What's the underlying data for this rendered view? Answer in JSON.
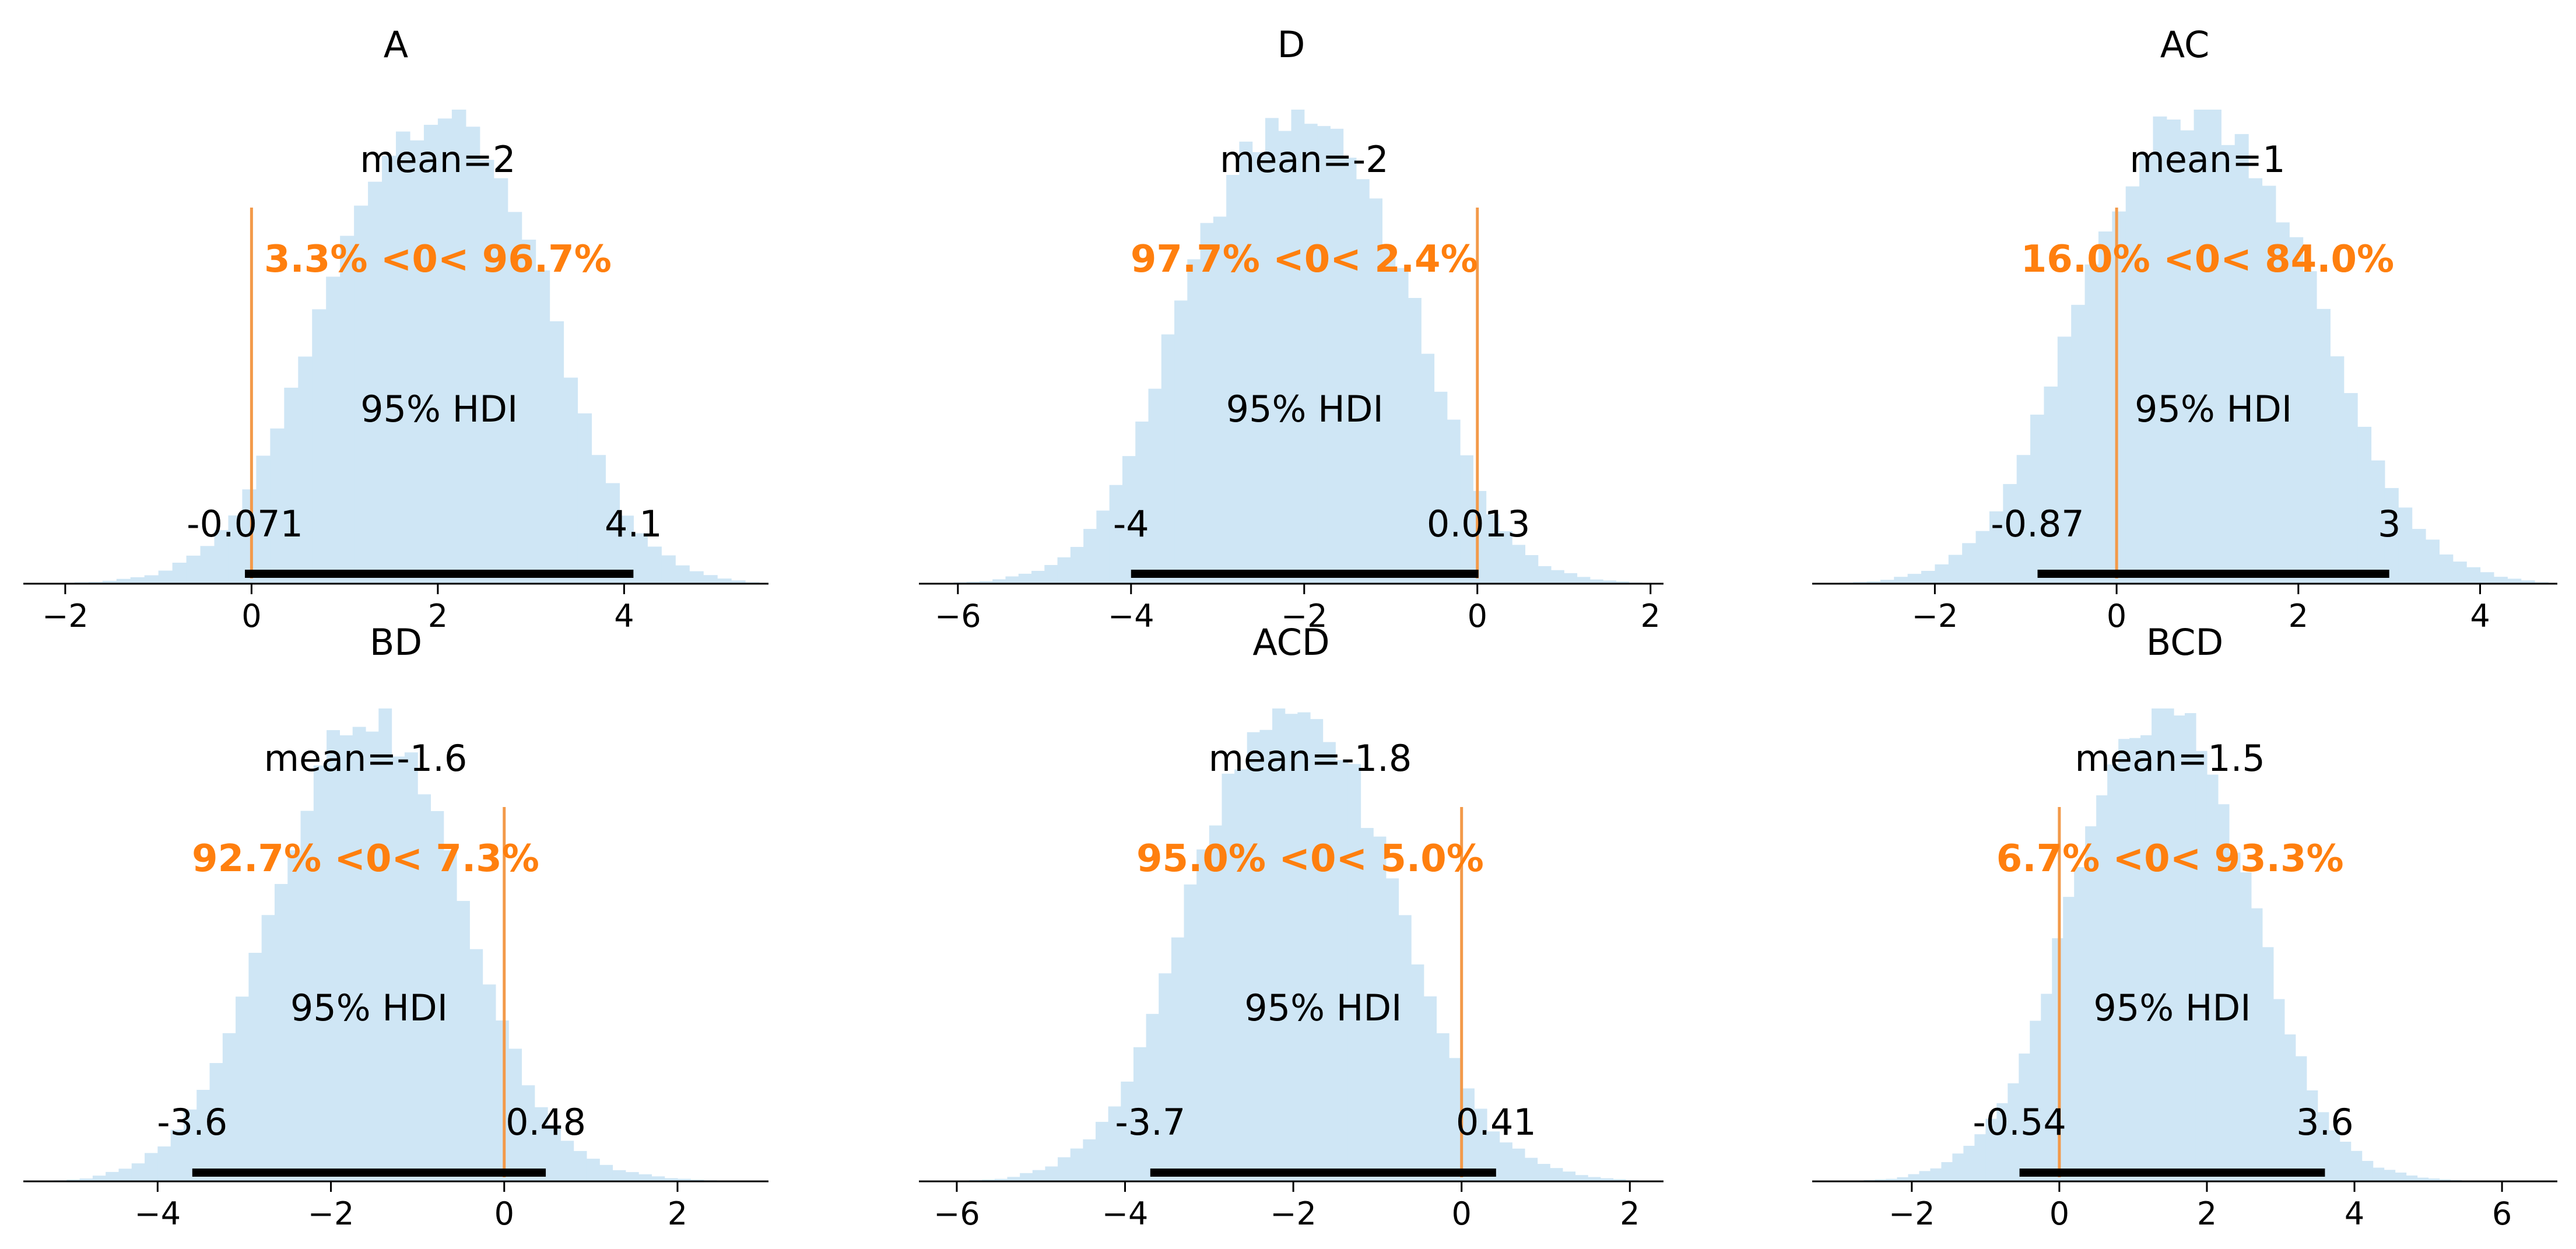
{
  "figure": {
    "type": "posterior-plot-grid",
    "rows": 2,
    "cols": 3
  },
  "colors": {
    "hist": "#cfe6f5",
    "ref": "#ff7f0e",
    "ref_line": "#f39a4a",
    "hdi_bar": "#000000",
    "axis": "#000000",
    "text": "#000000"
  },
  "chart_data": [
    {
      "type": "bar",
      "title": "A",
      "mean_label": "mean=2",
      "mean": 2,
      "ref_label": "3.3% <0< 96.7%",
      "ref_value": 0,
      "pct_below": 3.3,
      "pct_above": 96.7,
      "hdi_label": "95% HDI",
      "hdi_low": -0.071,
      "hdi_high": 4.1,
      "hdi_low_label": "-0.071",
      "hdi_high_label": "4.1",
      "xlim": [
        -2.45,
        5.55
      ],
      "xticks": [
        -2,
        0,
        2,
        4
      ],
      "xtick_labels": [
        "−2",
        "0",
        "2",
        "4"
      ],
      "bin_width": 0.15,
      "bins_x": [
        -2.2,
        5.4
      ],
      "density_anchors": [
        [
          -2.4,
          0
        ],
        [
          -1.6,
          0.004
        ],
        [
          -1.0,
          0.02
        ],
        [
          -0.6,
          0.06
        ],
        [
          -0.2,
          0.13
        ],
        [
          0.2,
          0.29
        ],
        [
          0.6,
          0.5
        ],
        [
          1.0,
          0.71
        ],
        [
          1.3,
          0.87
        ],
        [
          1.6,
          0.95
        ],
        [
          1.9,
          1.0
        ],
        [
          2.2,
          0.98
        ],
        [
          2.5,
          0.92
        ],
        [
          2.8,
          0.82
        ],
        [
          3.1,
          0.65
        ],
        [
          3.4,
          0.45
        ],
        [
          3.7,
          0.28
        ],
        [
          4.0,
          0.15
        ],
        [
          4.3,
          0.08
        ],
        [
          4.7,
          0.03
        ],
        [
          5.1,
          0.01
        ],
        [
          5.5,
          0
        ]
      ]
    },
    {
      "type": "bar",
      "title": "D",
      "mean_label": "mean=-2",
      "mean": -2,
      "ref_label": "97.7% <0< 2.4%",
      "ref_value": 0,
      "pct_below": 97.7,
      "pct_above": 2.4,
      "hdi_label": "95% HDI",
      "hdi_low": -4,
      "hdi_high": 0.013,
      "hdi_low_label": "-4",
      "hdi_high_label": "0.013",
      "xlim": [
        -6.45,
        2.15
      ],
      "xticks": [
        -6,
        -4,
        -2,
        0,
        2
      ],
      "xtick_labels": [
        "−6",
        "−4",
        "−2",
        "0",
        "2"
      ],
      "bin_width": 0.15,
      "bins_x": [
        -6.2,
        2.0
      ],
      "density_anchors": [
        [
          -6.3,
          0
        ],
        [
          -5.6,
          0.006
        ],
        [
          -5.0,
          0.03
        ],
        [
          -4.6,
          0.08
        ],
        [
          -4.2,
          0.19
        ],
        [
          -3.8,
          0.38
        ],
        [
          -3.4,
          0.6
        ],
        [
          -3.0,
          0.8
        ],
        [
          -2.6,
          0.92
        ],
        [
          -2.2,
          0.99
        ],
        [
          -1.9,
          1.0
        ],
        [
          -1.6,
          0.95
        ],
        [
          -1.2,
          0.82
        ],
        [
          -0.8,
          0.62
        ],
        [
          -0.4,
          0.4
        ],
        [
          0.0,
          0.2
        ],
        [
          0.4,
          0.09
        ],
        [
          0.8,
          0.035
        ],
        [
          1.3,
          0.01
        ],
        [
          2.0,
          0
        ]
      ]
    },
    {
      "type": "bar",
      "title": "AC",
      "mean_label": "mean=1",
      "mean": 1,
      "ref_label": "16.0% <0< 84.0%",
      "ref_value": 0,
      "pct_below": 16.0,
      "pct_above": 84.0,
      "hdi_label": "95% HDI",
      "hdi_low": -0.87,
      "hdi_high": 3,
      "hdi_low_label": "-0.87",
      "hdi_high_label": "3",
      "xlim": [
        -3.35,
        4.85
      ],
      "xticks": [
        -2,
        0,
        2,
        4
      ],
      "xtick_labels": [
        "−2",
        "0",
        "2",
        "4"
      ],
      "bin_width": 0.15,
      "bins_x": [
        -3.2,
        4.7
      ],
      "density_anchors": [
        [
          -3.3,
          0
        ],
        [
          -2.6,
          0.005
        ],
        [
          -2.0,
          0.03
        ],
        [
          -1.5,
          0.1
        ],
        [
          -1.1,
          0.23
        ],
        [
          -0.7,
          0.43
        ],
        [
          -0.3,
          0.66
        ],
        [
          0.1,
          0.85
        ],
        [
          0.5,
          0.96
        ],
        [
          0.9,
          1.0
        ],
        [
          1.3,
          0.96
        ],
        [
          1.7,
          0.84
        ],
        [
          2.1,
          0.66
        ],
        [
          2.5,
          0.44
        ],
        [
          2.9,
          0.25
        ],
        [
          3.3,
          0.12
        ],
        [
          3.7,
          0.05
        ],
        [
          4.2,
          0.015
        ],
        [
          4.8,
          0
        ]
      ]
    },
    {
      "type": "bar",
      "title": "BD",
      "mean_label": "mean=-1.6",
      "mean": -1.6,
      "ref_label": "92.7% <0< 7.3%",
      "ref_value": 0,
      "pct_below": 92.7,
      "pct_above": 7.3,
      "hdi_label": "95% HDI",
      "hdi_low": -3.6,
      "hdi_high": 0.48,
      "hdi_low_label": "-3.6",
      "hdi_high_label": "0.48",
      "xlim": [
        -5.55,
        3.05
      ],
      "xticks": [
        -4,
        -2,
        0,
        2
      ],
      "xtick_labels": [
        "−4",
        "−2",
        "0",
        "2"
      ],
      "bin_width": 0.15,
      "bins_x": [
        -5.2,
        2.6
      ],
      "density_anchors": [
        [
          -5.3,
          0
        ],
        [
          -4.8,
          0.006
        ],
        [
          -4.3,
          0.03
        ],
        [
          -3.9,
          0.08
        ],
        [
          -3.5,
          0.18
        ],
        [
          -3.1,
          0.36
        ],
        [
          -2.7,
          0.58
        ],
        [
          -2.3,
          0.8
        ],
        [
          -1.9,
          0.96
        ],
        [
          -1.6,
          1.0
        ],
        [
          -1.2,
          0.93
        ],
        [
          -0.8,
          0.78
        ],
        [
          -0.4,
          0.55
        ],
        [
          0.0,
          0.32
        ],
        [
          0.4,
          0.16
        ],
        [
          0.8,
          0.07
        ],
        [
          1.3,
          0.025
        ],
        [
          1.9,
          0.007
        ],
        [
          2.6,
          0
        ]
      ]
    },
    {
      "type": "bar",
      "title": "ACD",
      "mean_label": "mean=-1.8",
      "mean": -1.8,
      "ref_label": "95.0% <0< 5.0%",
      "ref_value": 0,
      "pct_below": 95.0,
      "pct_above": 5.0,
      "hdi_label": "95% HDI",
      "hdi_low": -3.7,
      "hdi_high": 0.41,
      "hdi_low_label": "-3.7",
      "hdi_high_label": "0.41",
      "xlim": [
        -6.45,
        2.4
      ],
      "xticks": [
        -6,
        -4,
        -2,
        0,
        2
      ],
      "xtick_labels": [
        "−6",
        "−4",
        "−2",
        "0",
        "2"
      ],
      "bin_width": 0.15,
      "bins_x": [
        -6.0,
        2.3
      ],
      "density_anchors": [
        [
          -6.1,
          0
        ],
        [
          -5.4,
          0.006
        ],
        [
          -4.9,
          0.03
        ],
        [
          -4.4,
          0.09
        ],
        [
          -4.0,
          0.2
        ],
        [
          -3.6,
          0.4
        ],
        [
          -3.2,
          0.62
        ],
        [
          -2.8,
          0.82
        ],
        [
          -2.4,
          0.95
        ],
        [
          -2.0,
          1.0
        ],
        [
          -1.6,
          0.96
        ],
        [
          -1.2,
          0.82
        ],
        [
          -0.8,
          0.62
        ],
        [
          -0.4,
          0.4
        ],
        [
          0.0,
          0.22
        ],
        [
          0.4,
          0.1
        ],
        [
          0.9,
          0.04
        ],
        [
          1.5,
          0.01
        ],
        [
          2.2,
          0
        ]
      ]
    },
    {
      "type": "bar",
      "title": "BCD",
      "mean_label": "mean=1.5",
      "mean": 1.5,
      "ref_label": "6.7% <0< 93.3%",
      "ref_value": 0,
      "pct_below": 6.7,
      "pct_above": 93.3,
      "hdi_label": "95% HDI",
      "hdi_low": -0.54,
      "hdi_high": 3.6,
      "hdi_low_label": "-0.54",
      "hdi_high_label": "3.6",
      "xlim": [
        -3.35,
        6.75
      ],
      "xticks": [
        -2,
        0,
        2,
        4,
        6
      ],
      "xtick_labels": [
        "−2",
        "0",
        "2",
        "4",
        "6"
      ],
      "bin_width": 0.15,
      "bins_x": [
        -2.8,
        5.6
      ],
      "density_anchors": [
        [
          -2.9,
          0
        ],
        [
          -2.2,
          0.006
        ],
        [
          -1.6,
          0.03
        ],
        [
          -1.1,
          0.09
        ],
        [
          -0.6,
          0.21
        ],
        [
          -0.2,
          0.4
        ],
        [
          0.2,
          0.62
        ],
        [
          0.6,
          0.82
        ],
        [
          1.0,
          0.95
        ],
        [
          1.4,
          1.0
        ],
        [
          1.8,
          0.95
        ],
        [
          2.2,
          0.8
        ],
        [
          2.6,
          0.6
        ],
        [
          3.0,
          0.38
        ],
        [
          3.4,
          0.2
        ],
        [
          3.8,
          0.09
        ],
        [
          4.3,
          0.03
        ],
        [
          4.9,
          0.008
        ],
        [
          5.6,
          0
        ]
      ]
    }
  ]
}
